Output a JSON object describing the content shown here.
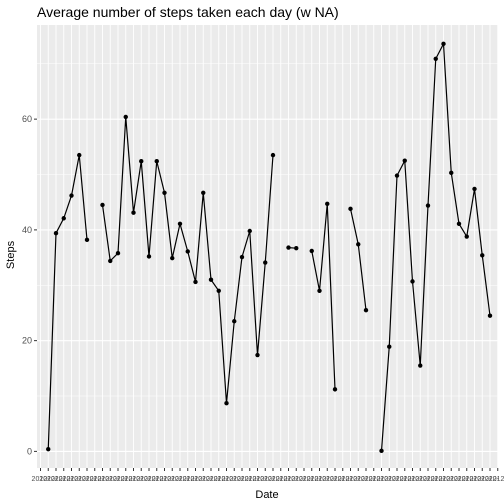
{
  "chart_data": {
    "type": "line",
    "title": "Average number of steps taken each day (w NA)",
    "xlabel": "Date",
    "ylabel": "Steps",
    "ylim": [
      -3,
      77
    ],
    "yticks": [
      0,
      20,
      40,
      60
    ],
    "x_tick_label_text": "2012-",
    "grid": true,
    "legend": "none",
    "colors": {
      "panel": "#ebebeb",
      "grid_major": "#ffffff",
      "line": "#000000",
      "point": "#000000"
    },
    "series": [
      {
        "values": [
          null,
          0.4,
          39.4,
          42.1,
          46.2,
          53.5,
          38.2,
          null,
          44.5,
          34.4,
          35.8,
          60.4,
          43.1,
          52.4,
          35.2,
          52.4,
          46.7,
          34.9,
          41.1,
          36.1,
          30.6,
          46.7,
          31.0,
          29.0,
          8.7,
          23.5,
          35.1,
          39.8,
          17.4,
          34.1,
          53.5,
          null,
          36.8,
          36.7,
          null,
          36.2,
          29.0,
          44.7,
          11.2,
          null,
          43.8,
          37.4,
          25.5,
          null,
          0.1,
          18.9,
          49.8,
          52.5,
          30.7,
          15.5,
          44.4,
          70.9,
          73.6,
          50.3,
          41.1,
          38.8,
          47.4,
          35.4,
          24.5,
          null
        ]
      }
    ]
  }
}
